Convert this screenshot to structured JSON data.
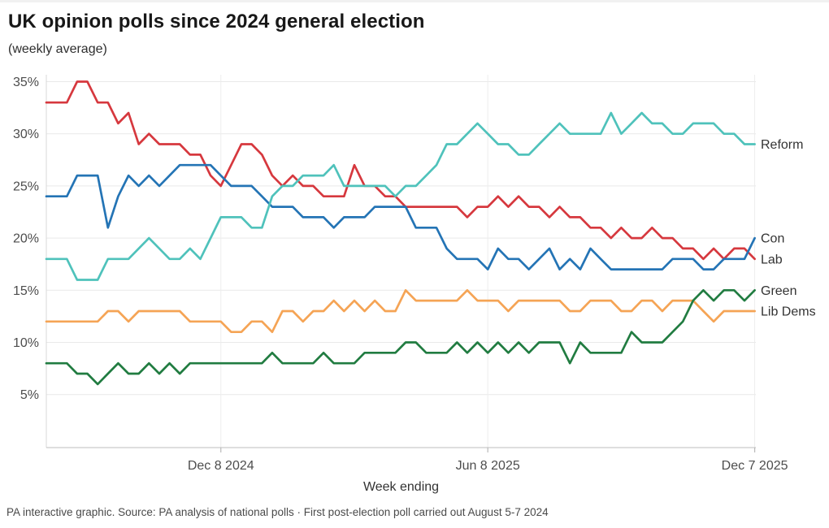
{
  "header": {
    "title": "UK opinion polls since 2024 general election",
    "subtitle": "(weekly average)"
  },
  "footer": {
    "text": "PA interactive graphic. Source: PA analysis of national polls · First post-election poll carried out August 5-7 2024"
  },
  "chart_data": {
    "type": "line",
    "title": "UK opinion polls since 2024 general election",
    "subtitle": "(weekly average)",
    "xlabel": "Week ending",
    "ylabel": "",
    "x_axis": {
      "unit": "weekly points, first week ending after the August 5-7 2024 post-election poll",
      "n_points": 70,
      "tick_labels": [
        "Dec 8 2024",
        "Jun 8 2025",
        "Dec 7 2025"
      ],
      "tick_point_indices": [
        17,
        43,
        69
      ]
    },
    "y_axis": {
      "unit": "%",
      "ticks": [
        5,
        10,
        15,
        20,
        25,
        30,
        35
      ],
      "tick_labels": [
        "5%",
        "10%",
        "15%",
        "20%",
        "25%",
        "30%",
        "35%"
      ],
      "ylim": [
        0,
        35.7
      ]
    },
    "grid": "horizontal gridlines at each 5% tick, faint vertical gridlines at date ticks",
    "legend_position": "labels at right end of each line",
    "series": [
      {
        "name": "Lib Dems",
        "color": "#f5a455",
        "values": [
          12,
          12,
          12,
          12,
          12,
          12,
          13,
          13,
          12,
          13,
          13,
          13,
          13,
          13,
          12,
          12,
          12,
          12,
          11,
          11,
          12,
          12,
          11,
          13,
          13,
          12,
          13,
          13,
          14,
          13,
          14,
          13,
          14,
          13,
          13,
          15,
          14,
          14,
          14,
          14,
          14,
          15,
          14,
          14,
          14,
          13,
          14,
          14,
          14,
          14,
          14,
          13,
          13,
          14,
          14,
          14,
          13,
          13,
          14,
          14,
          13,
          14,
          14,
          14,
          13,
          12,
          13,
          13,
          13,
          13
        ]
      },
      {
        "name": "Green",
        "color": "#217c41",
        "values": [
          8,
          8,
          8,
          7,
          7,
          6,
          7,
          8,
          7,
          7,
          8,
          7,
          8,
          7,
          8,
          8,
          8,
          8,
          8,
          8,
          8,
          8,
          9,
          8,
          8,
          8,
          8,
          9,
          8,
          8,
          8,
          9,
          9,
          9,
          9,
          10,
          10,
          9,
          9,
          9,
          10,
          9,
          10,
          9,
          10,
          9,
          10,
          9,
          10,
          10,
          10,
          8,
          10,
          9,
          9,
          9,
          9,
          11,
          10,
          10,
          10,
          11,
          12,
          14,
          15,
          14,
          15,
          15,
          14,
          15
        ]
      },
      {
        "name": "Lab",
        "color": "#d6383e",
        "values": [
          33,
          33,
          33,
          35,
          35,
          33,
          33,
          31,
          32,
          29,
          30,
          29,
          29,
          29,
          28,
          28,
          26,
          25,
          27,
          29,
          29,
          28,
          26,
          25,
          26,
          25,
          25,
          24,
          24,
          24,
          27,
          25,
          25,
          24,
          24,
          23,
          23,
          23,
          23,
          23,
          23,
          22,
          23,
          23,
          24,
          23,
          24,
          23,
          23,
          22,
          23,
          22,
          22,
          21,
          21,
          20,
          21,
          20,
          20,
          21,
          20,
          20,
          19,
          19,
          18,
          19,
          18,
          19,
          19,
          18
        ]
      },
      {
        "name": "Con",
        "color": "#2474b5",
        "values": [
          24,
          24,
          24,
          26,
          26,
          26,
          21,
          24,
          26,
          25,
          26,
          25,
          26,
          27,
          27,
          27,
          27,
          26,
          25,
          25,
          25,
          24,
          23,
          23,
          23,
          22,
          22,
          22,
          21,
          22,
          22,
          22,
          23,
          23,
          23,
          23,
          21,
          21,
          21,
          19,
          18,
          18,
          18,
          17,
          19,
          18,
          18,
          17,
          18,
          19,
          17,
          18,
          17,
          19,
          18,
          17,
          17,
          17,
          17,
          17,
          17,
          18,
          18,
          18,
          17,
          17,
          18,
          18,
          18,
          20
        ]
      },
      {
        "name": "Reform",
        "color": "#4fc2bb",
        "values": [
          18,
          18,
          18,
          16,
          16,
          16,
          18,
          18,
          18,
          19,
          20,
          19,
          18,
          18,
          19,
          18,
          20,
          22,
          22,
          22,
          21,
          21,
          24,
          25,
          25,
          26,
          26,
          26,
          27,
          25,
          25,
          25,
          25,
          25,
          24,
          25,
          25,
          26,
          27,
          29,
          29,
          30,
          31,
          30,
          29,
          29,
          28,
          28,
          29,
          30,
          31,
          30,
          30,
          30,
          30,
          32,
          30,
          31,
          32,
          31,
          31,
          30,
          30,
          31,
          31,
          31,
          30,
          30,
          29,
          29
        ]
      }
    ]
  },
  "layout_colors": {
    "grid": "#e9e9e9",
    "axis": "#c9c9c9",
    "tick_text": "#4d4d4d",
    "label_text": "#333333"
  }
}
